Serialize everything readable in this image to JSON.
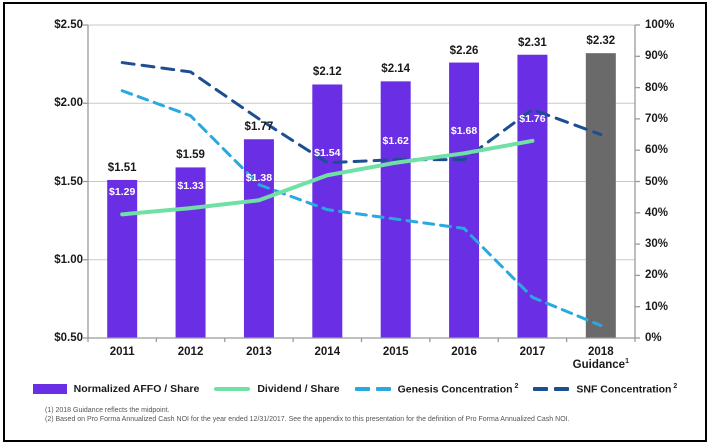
{
  "colors": {
    "bar_purple": "#6A2FE4",
    "bar_gray": "#6A6A6A",
    "dividend_green": "#70E0A6",
    "genesis_cyan": "#29A9E0",
    "snf_navy": "#1C4E91",
    "text": "#1A1A1A",
    "footnote_gray": "#555555",
    "gridline": "#C9C9C9",
    "axis": "#9A9A9A",
    "frame": "#000000"
  },
  "chart_data": {
    "type": "combo",
    "title": "",
    "categories": [
      "2011",
      "2012",
      "2013",
      "2014",
      "2015",
      "2016",
      "2017",
      "2018 Guidance"
    ],
    "x_tick_labels": [
      {
        "line1": "2011"
      },
      {
        "line1": "2012"
      },
      {
        "line1": "2013"
      },
      {
        "line1": "2014"
      },
      {
        "line1": "2015"
      },
      {
        "line1": "2016"
      },
      {
        "line1": "2017"
      },
      {
        "line1": "2018",
        "line2": "Guidance",
        "sup": "1"
      }
    ],
    "left_axis": {
      "min": 0.5,
      "max": 2.5,
      "step": 0.5,
      "tick_labels": [
        "$2.50",
        "$2.00",
        "$1.50",
        "$1.00",
        "$0.50"
      ]
    },
    "right_axis": {
      "min": 0,
      "max": 100,
      "step": 10,
      "tick_labels": [
        "100%",
        "90%",
        "80%",
        "70%",
        "60%",
        "50%",
        "40%",
        "30%",
        "20%",
        "10%",
        "0%"
      ]
    },
    "grid": "horizontal",
    "legend_position": "bottom",
    "series": [
      {
        "name": "Normalized AFFO / Share",
        "type": "bar",
        "axis": "left",
        "values": [
          1.51,
          1.59,
          1.77,
          2.12,
          2.14,
          2.26,
          2.31,
          2.32
        ],
        "data_labels": [
          "$1.51",
          "$1.59",
          "$1.77",
          "$2.12",
          "$2.14",
          "$2.26",
          "$2.31",
          "$2.32"
        ],
        "point_color_keys": [
          "bar_purple",
          "bar_purple",
          "bar_purple",
          "bar_purple",
          "bar_purple",
          "bar_purple",
          "bar_purple",
          "bar_gray"
        ],
        "legend_color_key": "bar_purple"
      },
      {
        "name": "Dividend / Share",
        "type": "line",
        "axis": "left",
        "values": [
          1.29,
          1.33,
          1.38,
          1.54,
          1.62,
          1.68,
          1.76,
          null
        ],
        "data_labels": [
          "$1.29",
          "$1.33",
          "$1.38",
          "$1.54",
          "$1.62",
          "$1.68",
          "$1.76",
          null
        ],
        "legend_color_key": "dividend_green"
      },
      {
        "name": "Genesis Concentration",
        "name_sup": "2",
        "type": "dashed_line",
        "axis": "right",
        "values": [
          79,
          71,
          49,
          41,
          38,
          35,
          13,
          4
        ],
        "legend_color_key": "genesis_cyan"
      },
      {
        "name": "SNF Concentration",
        "name_sup": "2",
        "type": "dashed_line",
        "axis": "right",
        "values": [
          88,
          85,
          70,
          56,
          57,
          57,
          73,
          65
        ],
        "legend_color_key": "snf_navy"
      }
    ]
  },
  "footnotes": {
    "line1": "(1) 2018 Guidance reflects the midpoint.",
    "line2": "(2) Based on Pro Forma Annualized Cash NOI for the year ended 12/31/2017. See the appendix to this presentation for the definition of Pro Forma Annualized Cash NOI."
  }
}
